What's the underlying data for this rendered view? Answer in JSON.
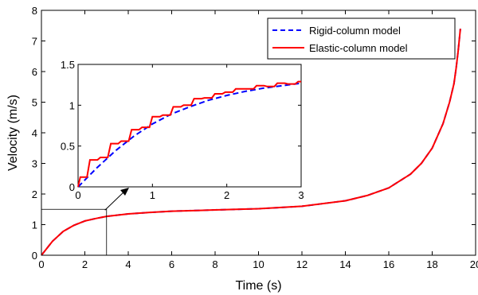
{
  "chart_data": [
    {
      "type": "line",
      "title": "",
      "xlabel": "Time (s)",
      "ylabel": "Velocity (m/s)",
      "xlim": [
        0,
        20
      ],
      "ylim": [
        0,
        8
      ],
      "xticks": [
        "0",
        "2",
        "4",
        "6",
        "8",
        "10",
        "12",
        "14",
        "16",
        "18",
        "20"
      ],
      "yticks": [
        "0",
        "1",
        "2",
        "3",
        "4",
        "5",
        "6",
        "7",
        "8"
      ],
      "grid": false,
      "legend_position": "top-right",
      "series": [
        {
          "name": "Rigid-column model",
          "color": "#0000ff",
          "style": "dashed",
          "x": [
            0,
            0.5,
            1,
            1.5,
            2,
            2.5,
            3,
            4,
            5,
            6,
            8,
            10,
            12,
            14,
            15,
            16,
            17,
            17.5,
            18,
            18.5,
            18.8,
            19,
            19.1,
            19.2,
            19.3
          ],
          "y": [
            0,
            0.45,
            0.78,
            0.98,
            1.12,
            1.2,
            1.27,
            1.35,
            1.4,
            1.44,
            1.48,
            1.52,
            1.6,
            1.78,
            1.95,
            2.2,
            2.65,
            3.0,
            3.5,
            4.3,
            5.0,
            5.6,
            6.1,
            6.7,
            7.4
          ]
        },
        {
          "name": "Elastic-column model",
          "color": "#ff0000",
          "style": "solid",
          "x": [
            0,
            0.5,
            1,
            1.5,
            2,
            2.5,
            3,
            4,
            5,
            6,
            8,
            10,
            12,
            14,
            15,
            16,
            17,
            17.5,
            18,
            18.5,
            18.8,
            19,
            19.1,
            19.2,
            19.3
          ],
          "y": [
            0,
            0.45,
            0.78,
            0.98,
            1.12,
            1.2,
            1.27,
            1.35,
            1.4,
            1.44,
            1.48,
            1.52,
            1.6,
            1.78,
            1.95,
            2.2,
            2.65,
            3.0,
            3.5,
            4.3,
            5.0,
            5.6,
            6.1,
            6.7,
            7.4
          ]
        }
      ],
      "zoom_box": {
        "xlim": [
          0,
          3
        ],
        "ylim": [
          0,
          1.5
        ]
      }
    },
    {
      "type": "line",
      "title": "",
      "xlabel": "",
      "ylabel": "",
      "xlim": [
        0,
        3
      ],
      "ylim": [
        0,
        1.5
      ],
      "xticks": [
        "0",
        "1",
        "2",
        "3"
      ],
      "yticks": [
        "0",
        "0.5",
        "1",
        "1.5"
      ],
      "grid": false,
      "series": [
        {
          "name": "Rigid-column model",
          "color": "#0000ff",
          "style": "dashed",
          "x": [
            0,
            0.25,
            0.5,
            0.75,
            1,
            1.25,
            1.5,
            1.75,
            2,
            2.25,
            2.5,
            2.75,
            3
          ],
          "y": [
            0,
            0.23,
            0.44,
            0.62,
            0.77,
            0.89,
            0.98,
            1.06,
            1.12,
            1.17,
            1.21,
            1.24,
            1.27
          ]
        },
        {
          "name": "Elastic-column model",
          "color": "#ff0000",
          "style": "solid",
          "x": [
            0,
            0.03,
            0.12,
            0.16,
            0.26,
            0.3,
            0.4,
            0.44,
            0.54,
            0.58,
            0.68,
            0.72,
            0.82,
            0.86,
            0.96,
            1.0,
            1.1,
            1.14,
            1.24,
            1.28,
            1.38,
            1.42,
            1.52,
            1.56,
            1.66,
            1.7,
            1.8,
            1.84,
            1.94,
            1.98,
            2.08,
            2.12,
            2.22,
            2.26,
            2.36,
            2.4,
            2.5,
            2.54,
            2.64,
            2.68,
            2.78,
            2.82,
            2.92,
            2.96,
            3.0
          ],
          "y": [
            0,
            0.12,
            0.12,
            0.33,
            0.33,
            0.36,
            0.36,
            0.53,
            0.53,
            0.56,
            0.56,
            0.7,
            0.7,
            0.73,
            0.73,
            0.86,
            0.86,
            0.88,
            0.88,
            0.98,
            0.98,
            1.0,
            1.0,
            1.08,
            1.08,
            1.09,
            1.09,
            1.14,
            1.14,
            1.16,
            1.16,
            1.2,
            1.2,
            1.2,
            1.2,
            1.24,
            1.24,
            1.23,
            1.23,
            1.27,
            1.27,
            1.26,
            1.26,
            1.29,
            1.29
          ]
        }
      ]
    }
  ]
}
